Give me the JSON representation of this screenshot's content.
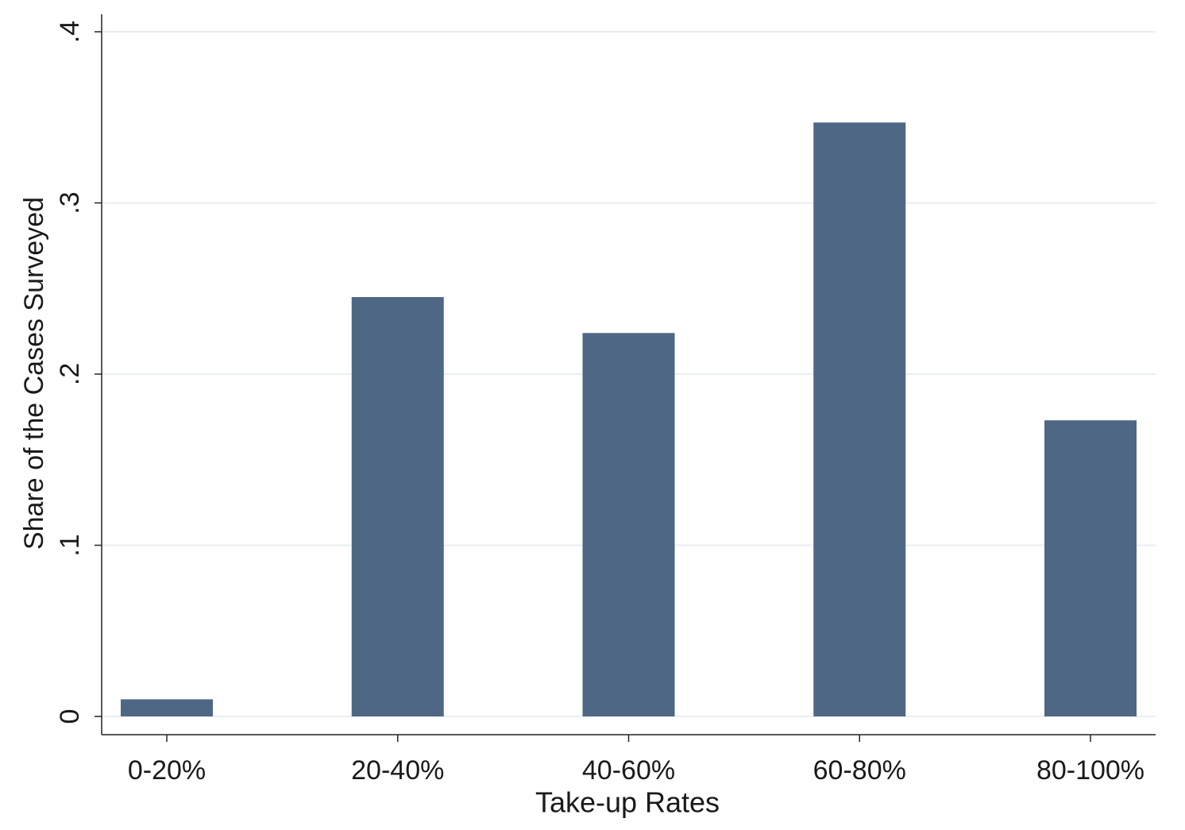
{
  "chart_data": {
    "type": "bar",
    "x_label": "Take-up Rates",
    "y_label": "Share of the Cases Surveyed",
    "categories": [
      "0-20%",
      "20-40%",
      "40-60%",
      "60-80%",
      "80-100%"
    ],
    "values": [
      0.01,
      0.245,
      0.224,
      0.347,
      0.173
    ],
    "color": "#4e6785",
    "ylim": [
      0,
      0.4
    ],
    "yticks": [
      0,
      {
        "value": 0.1,
        "label": ".1"
      },
      {
        "value": 0.2,
        "label": ".2"
      },
      {
        "value": 0.3,
        "label": ".3"
      },
      {
        "value": 0.4,
        "label": ".4"
      }
    ],
    "grid": true
  }
}
